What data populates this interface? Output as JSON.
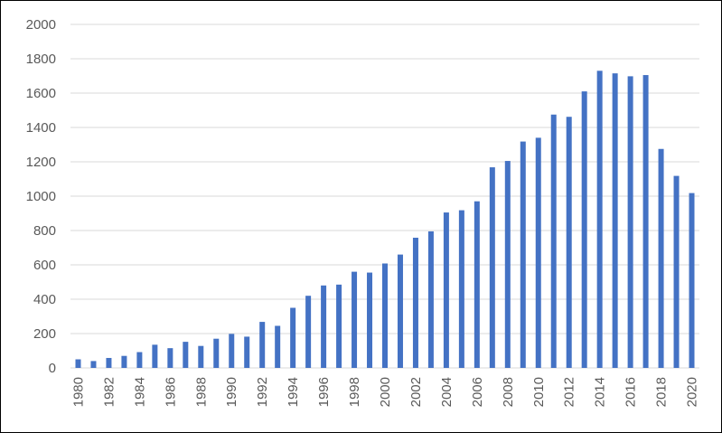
{
  "chart_data": {
    "type": "bar",
    "title": "",
    "xlabel": "",
    "ylabel": "",
    "ylim": [
      0,
      2000
    ],
    "yticks": [
      0,
      200,
      400,
      600,
      800,
      1000,
      1200,
      1400,
      1600,
      1800,
      2000
    ],
    "grid": true,
    "legend": "none",
    "bar_color": "#4472c4",
    "categories": [
      "1980",
      "1981",
      "1982",
      "1983",
      "1984",
      "1985",
      "1986",
      "1987",
      "1988",
      "1989",
      "1990",
      "1991",
      "1992",
      "1993",
      "1994",
      "1995",
      "1996",
      "1997",
      "1998",
      "1999",
      "2000",
      "2001",
      "2002",
      "2003",
      "2004",
      "2005",
      "2006",
      "2007",
      "2008",
      "2009",
      "2010",
      "2011",
      "2012",
      "2013",
      "2014",
      "2015",
      "2016",
      "2017",
      "2018",
      "2019",
      "2020"
    ],
    "x_tick_labels": [
      "1980",
      "1982",
      "1984",
      "1986",
      "1988",
      "1990",
      "1992",
      "1994",
      "1996",
      "1998",
      "2000",
      "2002",
      "2004",
      "2006",
      "2008",
      "2010",
      "2012",
      "2014",
      "2016",
      "2018",
      "2020"
    ],
    "values": [
      50,
      40,
      58,
      70,
      92,
      135,
      115,
      152,
      128,
      170,
      198,
      182,
      268,
      245,
      350,
      420,
      480,
      485,
      560,
      555,
      608,
      660,
      758,
      795,
      905,
      918,
      970,
      1168,
      1205,
      1318,
      1340,
      1475,
      1462,
      1610,
      1730,
      1715,
      1698,
      1705,
      1275,
      1118,
      1018
    ]
  }
}
